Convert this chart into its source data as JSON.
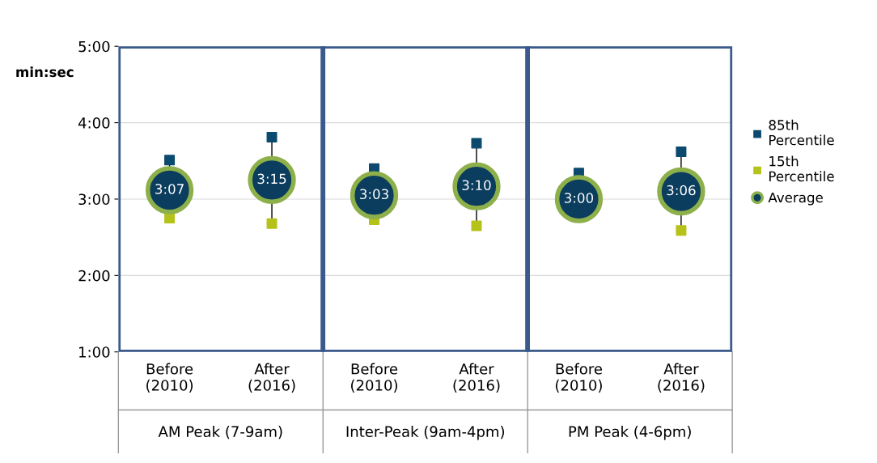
{
  "chart_data": {
    "type": "scatter",
    "ylabel": "min:sec",
    "categories": [
      "Before\n(2010)",
      "After\n(2016)",
      "Before\n(2010)",
      "After\n(2016)",
      "Before\n(2010)",
      "After\n(2016)"
    ],
    "annotations": [
      "AM Peak (7-9am)",
      "Inter-Peak (9am-4pm)",
      "PM Peak (4-6pm)"
    ],
    "ylim": [
      1,
      5
    ],
    "yticks": [
      {
        "value": 1,
        "label": "1:00"
      },
      {
        "value": 2,
        "label": "2:00"
      },
      {
        "value": 3,
        "label": "3:00"
      },
      {
        "value": 4,
        "label": "4:00"
      },
      {
        "value": 5,
        "label": "5:00"
      }
    ],
    "grid": "y",
    "legend": "right",
    "series": [
      {
        "name": "85th\nPercentile",
        "color": "#0b4a6e",
        "marker": "square",
        "values": [
          3.51,
          3.81,
          3.4,
          3.73,
          3.34,
          3.62
        ]
      },
      {
        "name": "15th\nPercentile",
        "color": "#b5c21a",
        "marker": "square",
        "values": [
          2.75,
          2.68,
          2.73,
          2.65,
          null,
          2.59
        ]
      },
      {
        "name": "Average",
        "color": "#0b3d5e",
        "marker": "circle",
        "values": [
          3.117,
          3.25,
          3.05,
          3.167,
          3.0,
          3.1
        ],
        "value_labels": [
          "3:07",
          "3:15",
          "3:03",
          "3:10",
          "3:00",
          "3:06"
        ]
      }
    ]
  }
}
